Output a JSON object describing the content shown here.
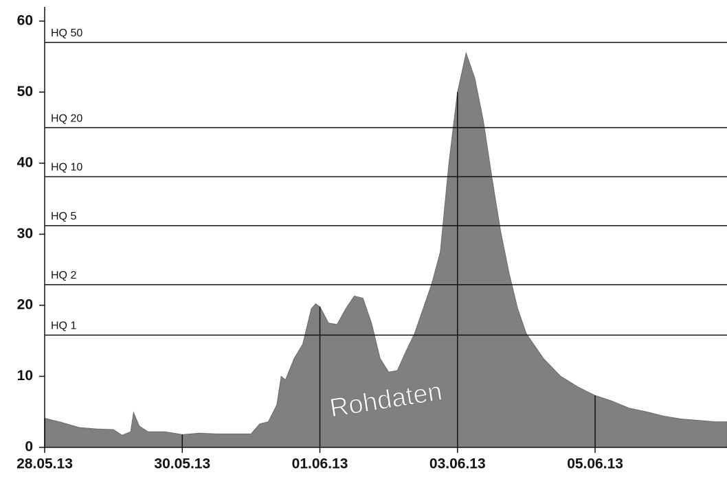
{
  "chart_data": {
    "type": "area",
    "annotation": "Rohdaten",
    "x": [
      "2013-05-28T00:00",
      "2013-05-28T06:00",
      "2013-05-28T12:00",
      "2013-05-28T18:00",
      "2013-05-29T00:00",
      "2013-05-29T03:00",
      "2013-05-29T06:00",
      "2013-05-29T07:00",
      "2013-05-29T09:00",
      "2013-05-29T12:00",
      "2013-05-29T18:00",
      "2013-05-30T00:00",
      "2013-05-30T06:00",
      "2013-05-30T12:00",
      "2013-05-30T18:00",
      "2013-05-31T00:00",
      "2013-05-31T03:00",
      "2013-05-31T06:00",
      "2013-05-31T09:00",
      "2013-05-31T10:30",
      "2013-05-31T12:00",
      "2013-05-31T15:00",
      "2013-05-31T18:00",
      "2013-05-31T21:00",
      "2013-05-31T22:30",
      "2013-06-01T00:00",
      "2013-06-01T03:00",
      "2013-06-01T06:00",
      "2013-06-01T09:00",
      "2013-06-01T12:00",
      "2013-06-01T15:00",
      "2013-06-01T18:00",
      "2013-06-01T21:00",
      "2013-06-02T00:00",
      "2013-06-02T03:00",
      "2013-06-02T06:00",
      "2013-06-02T09:00",
      "2013-06-02T12:00",
      "2013-06-02T15:00",
      "2013-06-02T18:00",
      "2013-06-02T21:00",
      "2013-06-03T00:00",
      "2013-06-03T03:00",
      "2013-06-03T06:00",
      "2013-06-03T09:00",
      "2013-06-03T12:00",
      "2013-06-03T15:00",
      "2013-06-03T18:00",
      "2013-06-03T21:00",
      "2013-06-04T00:00",
      "2013-06-04T06:00",
      "2013-06-04T12:00",
      "2013-06-04T18:00",
      "2013-06-05T00:00",
      "2013-06-05T06:00",
      "2013-06-05T12:00",
      "2013-06-05T18:00",
      "2013-06-06T00:00",
      "2013-06-06T06:00",
      "2013-06-06T12:00",
      "2013-06-06T18:00",
      "2013-06-06T22:00"
    ],
    "values": [
      4.1,
      3.5,
      2.8,
      2.6,
      2.5,
      1.7,
      2.2,
      4.9,
      3.0,
      2.2,
      2.2,
      1.8,
      2.0,
      1.9,
      1.9,
      1.9,
      3.3,
      3.6,
      6.0,
      10.0,
      9.5,
      12.5,
      14.5,
      19.5,
      20.2,
      19.8,
      17.5,
      17.3,
      19.5,
      21.3,
      21.0,
      17.5,
      12.5,
      10.6,
      10.8,
      13.5,
      16.0,
      19.5,
      23.0,
      27.5,
      40,
      50,
      55.5,
      52,
      46,
      38,
      30.5,
      24.5,
      19.5,
      16.0,
      12.5,
      10,
      8.5,
      7.3,
      6.5,
      5.5,
      5.0,
      4.4,
      4.0,
      3.8,
      3.6,
      3.6
    ],
    "color": "#808080",
    "xlim": [
      "2013-05-28T00:00",
      "2013-06-06T22:00"
    ],
    "xticks": [
      {
        "value": "2013-05-28T00:00",
        "label": "28.05.13"
      },
      {
        "value": "2013-05-30T00:00",
        "label": "30.05.13"
      },
      {
        "value": "2013-06-01T00:00",
        "label": "01.06.13"
      },
      {
        "value": "2013-06-03T00:00",
        "label": "03.06.13"
      },
      {
        "value": "2013-06-05T00:00",
        "label": "05.06.13"
      }
    ],
    "ylim": [
      0,
      62
    ],
    "yticks": [
      0,
      10,
      20,
      30,
      40,
      50,
      60
    ],
    "reference_lines": [
      {
        "label": "HQ 1",
        "value": 15.8
      },
      {
        "label": "HQ 2",
        "value": 22.9
      },
      {
        "label": "HQ 5",
        "value": 31.2
      },
      {
        "label": "HQ 10",
        "value": 38.1
      },
      {
        "label": "HQ 20",
        "value": 45.0
      },
      {
        "label": "HQ 50",
        "value": 57.0
      }
    ]
  }
}
